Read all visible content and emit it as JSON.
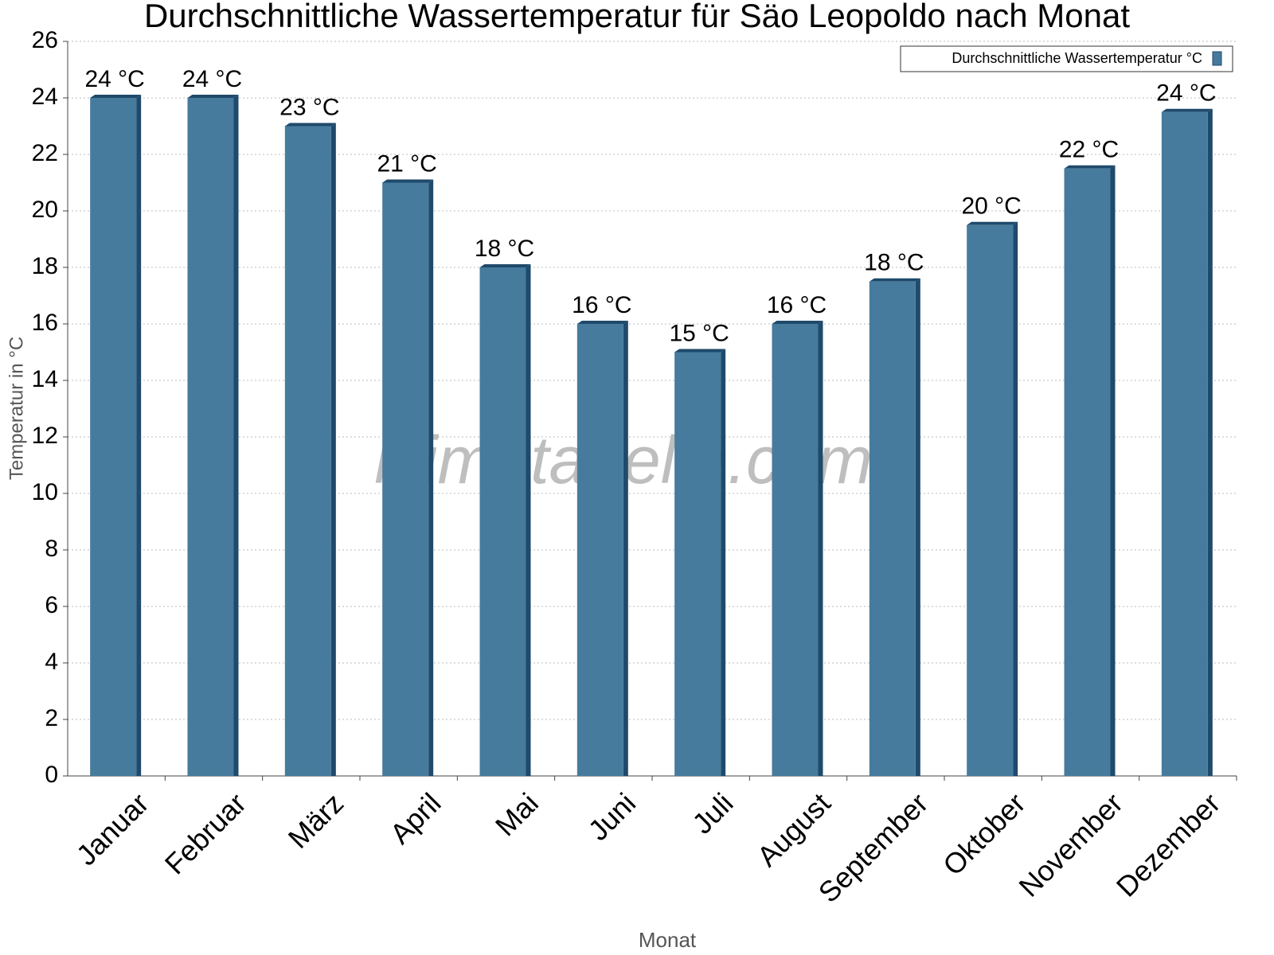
{
  "chart_data": {
    "type": "bar",
    "title": "Durchschnittliche Wassertemperatur für Säo Leopoldo nach Monat",
    "xlabel": "Monat",
    "ylabel": "Temperatur in °C",
    "watermark": "klimatabelle.com",
    "categories": [
      "Januar",
      "Februar",
      "März",
      "April",
      "Mai",
      "Juni",
      "Juli",
      "August",
      "September",
      "Oktober",
      "November",
      "Dezember"
    ],
    "series": [
      {
        "name": "Durchschnittliche Wassertemperatur °C",
        "color": "#467b9d",
        "values": [
          24,
          24,
          23,
          21,
          18,
          16,
          15,
          16,
          17.5,
          19.5,
          21.5,
          23.5
        ],
        "value_labels": [
          "24 °C",
          "24 °C",
          "23 °C",
          "21 °C",
          "18 °C",
          "16 °C",
          "15 °C",
          "16 °C",
          "18 °C",
          "20 °C",
          "22 °C",
          "24 °C"
        ]
      }
    ],
    "ylim": [
      0,
      26
    ],
    "yticks": [
      0,
      2,
      4,
      6,
      8,
      10,
      12,
      14,
      16,
      18,
      20,
      22,
      24,
      26
    ],
    "grid": true,
    "legend": "top-right"
  }
}
